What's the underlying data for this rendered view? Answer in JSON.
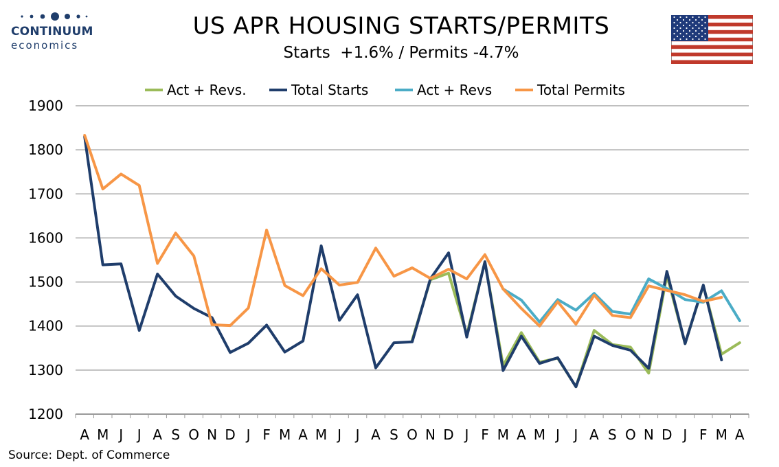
{
  "header": {
    "title": "US APR HOUSING STARTS/PERMITS",
    "subtitle": "Starts  +1.6% / Permits -4.7%",
    "logo_name": "CONTINUUM",
    "logo_sub": "economics",
    "flag_icon": "us-flag-icon"
  },
  "footer": {
    "source": "Source: Dept. of Commerce"
  },
  "colors": {
    "act_revs_starts": "#9bbb59",
    "total_starts": "#1f3d6b",
    "act_revs_permits": "#4bacc6",
    "total_permits": "#f79646",
    "grid": "#bfbfbf",
    "logo": "#1f3d6b"
  },
  "chart_data": {
    "type": "line",
    "title": "US APR HOUSING STARTS/PERMITS",
    "subtitle": "Starts  +1.6% / Permits -4.7%",
    "xlabel": "",
    "ylabel": "",
    "ylim": [
      1200,
      1900
    ],
    "yticks": [
      1200,
      1300,
      1400,
      1500,
      1600,
      1700,
      1800,
      1900
    ],
    "grid": true,
    "legend_position": "top",
    "categories": [
      "A",
      "M",
      "J",
      "J",
      "A",
      "S",
      "O",
      "N",
      "D",
      "J",
      "F",
      "M",
      "A",
      "M",
      "J",
      "J",
      "A",
      "S",
      "O",
      "N",
      "D",
      "J",
      "F",
      "M",
      "A",
      "M",
      "J",
      "J",
      "A",
      "S",
      "O",
      "N",
      "D",
      "J",
      "F",
      "M",
      "A"
    ],
    "series": [
      {
        "name": "Act + Revs.",
        "color": "#9bbb59",
        "values": [
          null,
          null,
          null,
          null,
          null,
          null,
          null,
          null,
          null,
          null,
          null,
          null,
          null,
          null,
          null,
          null,
          null,
          null,
          1368,
          1505,
          1520,
          1380,
          1546,
          1310,
          1385,
          1318,
          1327,
          1262,
          1390,
          1358,
          1352,
          1293,
          1515,
          1360,
          1492,
          1336,
          1362
        ]
      },
      {
        "name": "Total Starts",
        "color": "#1f3d6b",
        "values": [
          1830,
          1539,
          1541,
          1390,
          1518,
          1468,
          1440,
          1419,
          1340,
          1361,
          1402,
          1341,
          1366,
          1582,
          1413,
          1471,
          1305,
          1362,
          1364,
          1507,
          1566,
          1375,
          1546,
          1299,
          1377,
          1315,
          1328,
          1262,
          1377,
          1356,
          1345,
          1304,
          1524,
          1360,
          1493,
          1323,
          null
        ]
      },
      {
        "name": "Act + Revs",
        "color": "#4bacc6",
        "values": [
          null,
          null,
          null,
          null,
          null,
          null,
          null,
          null,
          null,
          null,
          null,
          null,
          null,
          null,
          null,
          null,
          null,
          null,
          null,
          null,
          null,
          null,
          null,
          1484,
          1459,
          1409,
          1460,
          1436,
          1474,
          1433,
          1427,
          1507,
          1485,
          1460,
          1454,
          1480,
          1412
        ]
      },
      {
        "name": "Total Permits",
        "color": "#f79646",
        "values": [
          1833,
          1711,
          1745,
          1719,
          1542,
          1611,
          1559,
          1403,
          1401,
          1441,
          1618,
          1492,
          1469,
          1530,
          1493,
          1499,
          1577,
          1513,
          1532,
          1508,
          1529,
          1507,
          1562,
          1484,
          1440,
          1400,
          1455,
          1404,
          1470,
          1424,
          1419,
          1491,
          1481,
          1471,
          1456,
          1465,
          null
        ]
      }
    ]
  }
}
